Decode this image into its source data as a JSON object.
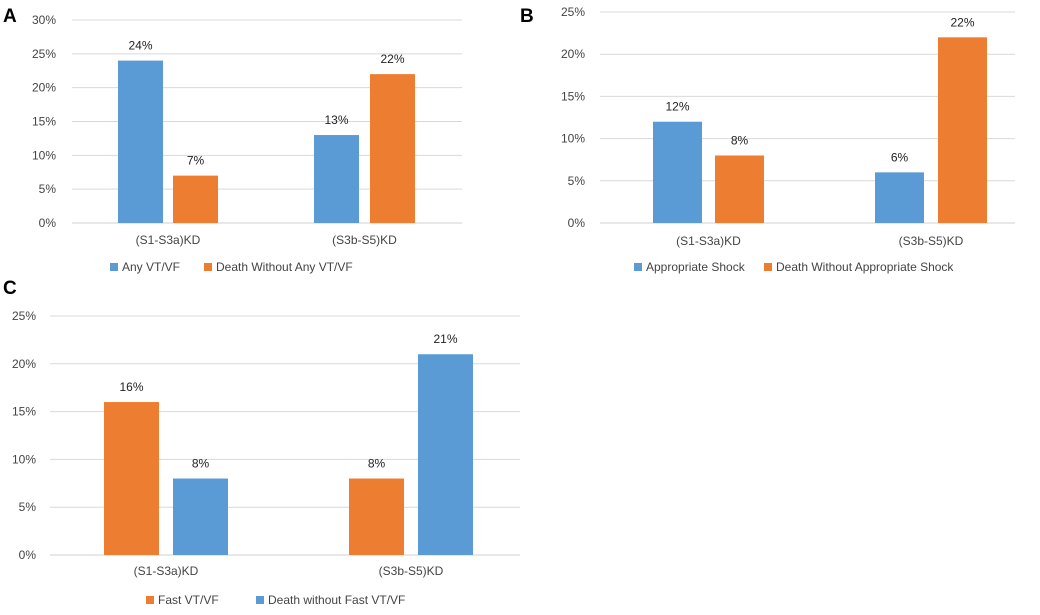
{
  "colors": {
    "blue": "#5b9bd5",
    "orange": "#ed7d31"
  },
  "chart_data": [
    {
      "panel": "A",
      "type": "bar",
      "categories": [
        "(S1-S3a)KD",
        "(S3b-S5)KD"
      ],
      "yticks": [
        "0%",
        "5%",
        "10%",
        "15%",
        "20%",
        "25%",
        "30%"
      ],
      "ylim": [
        0,
        30
      ],
      "series": [
        {
          "name": "Any VT/VF",
          "color": "#5b9bd5",
          "values": [
            24,
            13
          ],
          "labels": [
            "24%",
            "13%"
          ]
        },
        {
          "name": "Death Without Any VT/VF",
          "color": "#ed7d31",
          "values": [
            7,
            22
          ],
          "labels": [
            "7%",
            "22%"
          ]
        }
      ]
    },
    {
      "panel": "B",
      "type": "bar",
      "categories": [
        "(S1-S3a)KD",
        "(S3b-S5)KD"
      ],
      "yticks": [
        "0%",
        "5%",
        "10%",
        "15%",
        "20%",
        "25%"
      ],
      "ylim": [
        0,
        25
      ],
      "series": [
        {
          "name": "Appropriate Shock",
          "color": "#5b9bd5",
          "values": [
            12,
            6
          ],
          "labels": [
            "12%",
            "6%"
          ]
        },
        {
          "name": "Death Without Appropriate Shock",
          "color": "#ed7d31",
          "values": [
            8,
            22
          ],
          "labels": [
            "8%",
            "22%"
          ]
        }
      ]
    },
    {
      "panel": "C",
      "type": "bar",
      "categories": [
        "(S1-S3a)KD",
        "(S3b-S5)KD"
      ],
      "yticks": [
        "0%",
        "5%",
        "10%",
        "15%",
        "20%",
        "25%"
      ],
      "ylim": [
        0,
        25
      ],
      "series": [
        {
          "name": "Fast VT/VF",
          "color": "#ed7d31",
          "values": [
            16,
            8
          ],
          "labels": [
            "16%",
            "8%"
          ]
        },
        {
          "name": "Death without Fast VT/VF",
          "color": "#5b9bd5",
          "values": [
            8,
            21
          ],
          "labels": [
            "8%",
            "21%"
          ]
        }
      ]
    }
  ]
}
